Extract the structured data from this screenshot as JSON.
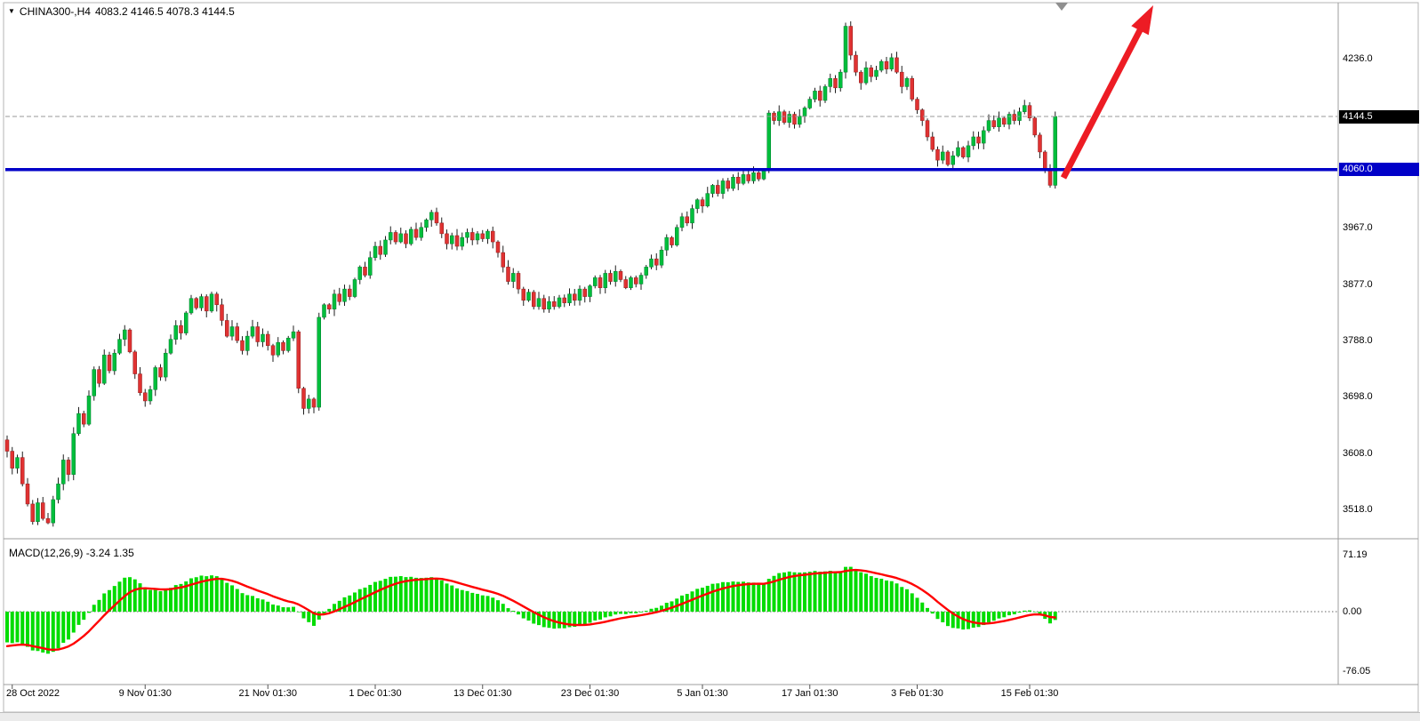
{
  "window": {
    "title": "CHINA300-,H4 chart",
    "bg": "#ffffff"
  },
  "header": {
    "symbol_period": "CHINA300-,H4",
    "ohlc_text": "4083.2 4146.5 4078.3 4144.5",
    "dropdown_icon": "triangle-down"
  },
  "colors": {
    "bull": "#00bе3c",
    "bull_fill": "#00be3c",
    "bear_fill": "#e03232",
    "wick": "#1f1f1f",
    "macd_histogram": "#00dc00",
    "macd_signal": "#ff0000",
    "level_line": "#0000c8",
    "bid_line": "#9a9a9a",
    "bid_tag_bg": "#000000",
    "level_tag_bg": "#0000c8",
    "arrow": "#ed1c24",
    "border": "#a8a8a8"
  },
  "indicator_panel": {
    "label": "MACD(12,26,9) -3.24 1.35",
    "name": "MACD",
    "params": "12,26,9",
    "main_value": -3.24,
    "signal_value": 1.35
  },
  "chart_data": {
    "type": "candlestick",
    "symbol": "CHINA300-",
    "timeframe": "H4",
    "title": "CHINA300-,H4",
    "current_bar_ohlc": [
      4083.2,
      4146.5,
      4078.3,
      4144.5
    ],
    "first_open": 3630,
    "closes": [
      3612,
      3585,
      3602,
      3560,
      3528,
      3500,
      3530,
      3505,
      3498,
      3535,
      3560,
      3598,
      3575,
      3640,
      3672,
      3655,
      3700,
      3742,
      3720,
      3765,
      3740,
      3768,
      3790,
      3805,
      3770,
      3735,
      3705,
      3692,
      3710,
      3745,
      3730,
      3768,
      3790,
      3812,
      3800,
      3832,
      3855,
      3840,
      3858,
      3835,
      3862,
      3845,
      3820,
      3795,
      3810,
      3788,
      3772,
      3795,
      3810,
      3786,
      3798,
      3780,
      3765,
      3785,
      3772,
      3792,
      3802,
      3712,
      3680,
      3695,
      3682,
      3825,
      3845,
      3838,
      3862,
      3850,
      3870,
      3858,
      3885,
      3905,
      3892,
      3920,
      3938,
      3925,
      3948,
      3960,
      3945,
      3958,
      3942,
      3965,
      3952,
      3968,
      3980,
      3992,
      3975,
      3958,
      3942,
      3955,
      3938,
      3952,
      3960,
      3948,
      3958,
      3950,
      3962,
      3945,
      3928,
      3905,
      3882,
      3895,
      3870,
      3852,
      3865,
      3842,
      3855,
      3838,
      3850,
      3842,
      3856,
      3848,
      3862,
      3852,
      3870,
      3858,
      3875,
      3888,
      3872,
      3895,
      3882,
      3898,
      3885,
      3872,
      3888,
      3878,
      3892,
      3905,
      3918,
      3908,
      3932,
      3952,
      3940,
      3968,
      3985,
      3975,
      3998,
      4012,
      4002,
      4022,
      4035,
      4022,
      4042,
      4030,
      4048,
      4038,
      4052,
      4042,
      4055,
      4045,
      4058,
      4150,
      4138,
      4152,
      4135,
      4148,
      4132,
      4145,
      4158,
      4172,
      4185,
      4170,
      4192,
      4205,
      4190,
      4215,
      4288,
      4242,
      4215,
      4198,
      4222,
      4208,
      4218,
      4232,
      4220,
      4238,
      4215,
      4192,
      4205,
      4172,
      4155,
      4138,
      4112,
      4092,
      4075,
      4088,
      4068,
      4082,
      4095,
      4080,
      4098,
      4112,
      4102,
      4122,
      4138,
      4128,
      4142,
      4132,
      4148,
      4138,
      4152,
      4162,
      4142,
      4115,
      4088,
      4058,
      4035,
      4144.5
    ],
    "levels": {
      "bid_price": 4144.5,
      "horizontal_line_price": 4060.0
    },
    "price_axis": [
      {
        "text": "4236.0",
        "price": 4236.0
      },
      {
        "text": "3967.0",
        "price": 3967.0
      },
      {
        "text": "3877.0",
        "price": 3877.0
      },
      {
        "text": "3788.0",
        "price": 3788.0
      },
      {
        "text": "3698.0",
        "price": 3698.0
      },
      {
        "text": "3608.0",
        "price": 3608.0
      },
      {
        "text": "3518.0",
        "price": 3518.0
      }
    ],
    "price_tags": [
      {
        "text": "4144.5",
        "price": 4144.5,
        "bg": "#000000"
      },
      {
        "text": "4060.0",
        "price": 4060.0,
        "bg": "#0000c8"
      }
    ],
    "time_axis": [
      {
        "text": "28 Oct 2022",
        "bar": 1,
        "align": "left"
      },
      {
        "text": "9 Nov 01:30",
        "bar": 27
      },
      {
        "text": "21 Nov 01:30",
        "bar": 51
      },
      {
        "text": "1 Dec 01:30",
        "bar": 72
      },
      {
        "text": "13 Dec 01:30",
        "bar": 93
      },
      {
        "text": "23 Dec 01:30",
        "bar": 114
      },
      {
        "text": "5 Jan 01:30",
        "bar": 136
      },
      {
        "text": "17 Jan 01:30",
        "bar": 157
      },
      {
        "text": "3 Feb 01:30",
        "bar": 178
      },
      {
        "text": "15 Feb 01:30",
        "bar": 200
      }
    ],
    "indicator": {
      "type": "MACD",
      "params": [
        12,
        26,
        9
      ],
      "last_main": -3.24,
      "last_signal": 1.35,
      "axis": [
        {
          "text": "71.19",
          "value": 71.19
        },
        {
          "text": "0.00",
          "value": 0.0
        },
        {
          "text": "-76.05",
          "value": -76.05
        }
      ]
    },
    "annotations": [
      {
        "type": "horizontal-line",
        "price": 4060.0,
        "color": "#0000c8",
        "width": "thick"
      },
      {
        "type": "bid-price-line",
        "price": 4144.5,
        "style": "dashed",
        "color": "#9a9a9a"
      },
      {
        "type": "arrow",
        "direction": "up-right",
        "color": "#ed1c24",
        "note": "large red bullish arrow in upper right"
      },
      {
        "type": "anchor-marker",
        "shape": "triangle-down",
        "color": "#8f8f8f",
        "position": "top, above arrow base"
      }
    ],
    "legend_position": "none",
    "grid": "off"
  }
}
